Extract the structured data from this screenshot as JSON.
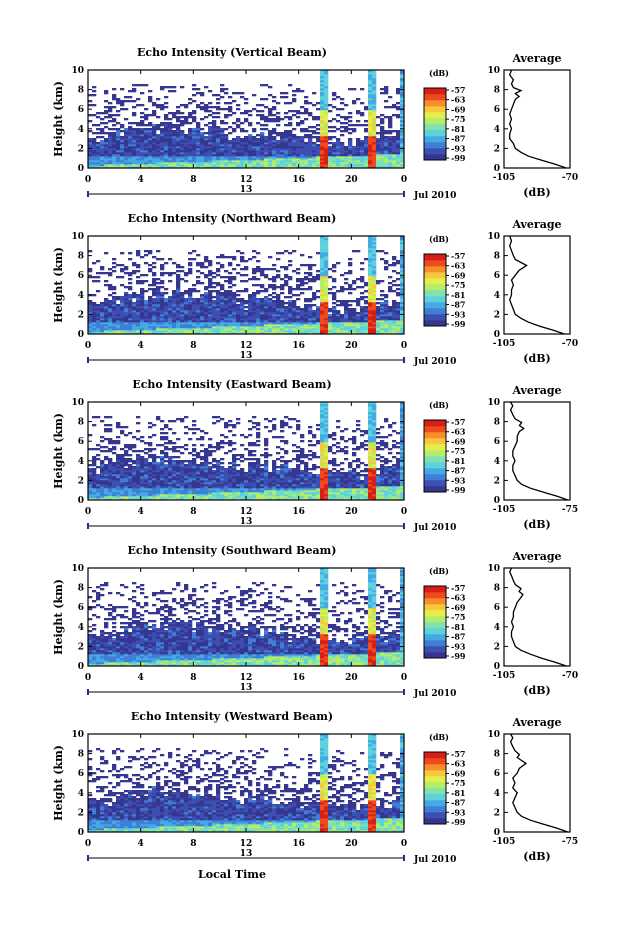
{
  "chart_data": [
    {
      "type": "heatmap",
      "title": "Echo Intensity (Vertical Beam)",
      "ylabel": "Height (km)",
      "x_ticks": [
        "0",
        "4",
        "8",
        "12",
        "16",
        "20",
        "0"
      ],
      "y_ticks": [
        "0",
        "2",
        "4",
        "6",
        "8",
        "10"
      ],
      "xlim": [
        0,
        24
      ],
      "ylim": [
        0,
        10
      ],
      "date_label": "Jul 2010",
      "colorbar": {
        "label": "(dB)",
        "ticks": [
          "-57",
          "-63",
          "-69",
          "-75",
          "-81",
          "-87",
          "-93",
          "-99"
        ]
      },
      "profile": {
        "title": "Average",
        "xlabel": "(dB)",
        "x_ticks": [
          "-105",
          "-70"
        ],
        "y_ticks": [
          "0",
          "2",
          "4",
          "6",
          "8",
          "10"
        ],
        "points": [
          [
            -72,
            0
          ],
          [
            -78,
            0.4
          ],
          [
            -85,
            0.8
          ],
          [
            -92,
            1.2
          ],
          [
            -96,
            1.6
          ],
          [
            -99,
            2.0
          ],
          [
            -100,
            2.5
          ],
          [
            -102,
            3.0
          ],
          [
            -102,
            3.5
          ],
          [
            -101,
            4.0
          ],
          [
            -102,
            4.5
          ],
          [
            -101,
            5.0
          ],
          [
            -102,
            5.5
          ],
          [
            -101,
            6.0
          ],
          [
            -100,
            6.5
          ],
          [
            -99,
            7.0
          ],
          [
            -97,
            7.3
          ],
          [
            -99,
            7.6
          ],
          [
            -96,
            7.9
          ],
          [
            -100,
            8.2
          ],
          [
            -101,
            8.6
          ],
          [
            -100,
            9.0
          ],
          [
            -102,
            9.5
          ],
          [
            -101,
            10
          ]
        ]
      }
    },
    {
      "type": "heatmap",
      "title": "Echo Intensity (Northward Beam)",
      "ylabel": "Height (km)",
      "x_ticks": [
        "0",
        "4",
        "8",
        "12",
        "16",
        "20",
        "0"
      ],
      "y_ticks": [
        "0",
        "2",
        "4",
        "6",
        "8",
        "10"
      ],
      "xlim": [
        0,
        24
      ],
      "ylim": [
        0,
        10
      ],
      "date_label": "Jul 2010",
      "colorbar": {
        "label": "(dB)",
        "ticks": [
          "-57",
          "-63",
          "-69",
          "-75",
          "-81",
          "-87",
          "-93",
          "-99"
        ]
      },
      "profile": {
        "title": "Average",
        "xlabel": "(dB)",
        "x_ticks": [
          "-105",
          "-70"
        ],
        "y_ticks": [
          "0",
          "2",
          "4",
          "6",
          "8",
          "10"
        ],
        "points": [
          [
            -73,
            0
          ],
          [
            -79,
            0.4
          ],
          [
            -86,
            0.8
          ],
          [
            -92,
            1.2
          ],
          [
            -96,
            1.6
          ],
          [
            -99,
            2.0
          ],
          [
            -100,
            2.5
          ],
          [
            -101,
            3.0
          ],
          [
            -102,
            3.5
          ],
          [
            -101,
            4.0
          ],
          [
            -101,
            4.5
          ],
          [
            -100,
            5.0
          ],
          [
            -101,
            5.5
          ],
          [
            -99,
            6.0
          ],
          [
            -97,
            6.5
          ],
          [
            -93,
            7.0
          ],
          [
            -96,
            7.3
          ],
          [
            -99,
            7.6
          ],
          [
            -100,
            8.0
          ],
          [
            -101,
            8.5
          ],
          [
            -102,
            9.0
          ],
          [
            -101,
            9.5
          ],
          [
            -102,
            10
          ]
        ]
      }
    },
    {
      "type": "heatmap",
      "title": "Echo Intensity (Eastward Beam)",
      "ylabel": "Height (km)",
      "x_ticks": [
        "0",
        "4",
        "8",
        "12",
        "16",
        "20",
        "0"
      ],
      "y_ticks": [
        "0",
        "2",
        "4",
        "6",
        "8",
        "10"
      ],
      "xlim": [
        0,
        24
      ],
      "ylim": [
        0,
        10
      ],
      "date_label": "Jul 2010",
      "colorbar": {
        "label": "(dB)",
        "ticks": [
          "-57",
          "-63",
          "-69",
          "-75",
          "-81",
          "-87",
          "-93",
          "-99"
        ]
      },
      "profile": {
        "title": "Average",
        "xlabel": "(dB)",
        "x_ticks": [
          "-105",
          "-75"
        ],
        "y_ticks": [
          "0",
          "2",
          "4",
          "6",
          "8",
          "10"
        ],
        "points": [
          [
            -76,
            0
          ],
          [
            -81,
            0.4
          ],
          [
            -87,
            0.8
          ],
          [
            -93,
            1.2
          ],
          [
            -97,
            1.6
          ],
          [
            -99,
            2.0
          ],
          [
            -100,
            2.5
          ],
          [
            -101,
            3.0
          ],
          [
            -101,
            3.5
          ],
          [
            -100,
            4.0
          ],
          [
            -101,
            4.5
          ],
          [
            -101,
            5.0
          ],
          [
            -100,
            5.5
          ],
          [
            -99,
            6.0
          ],
          [
            -99,
            6.5
          ],
          [
            -98,
            7.0
          ],
          [
            -96,
            7.3
          ],
          [
            -98,
            7.6
          ],
          [
            -97,
            7.9
          ],
          [
            -100,
            8.3
          ],
          [
            -101,
            8.7
          ],
          [
            -102,
            9.2
          ],
          [
            -101,
            9.6
          ],
          [
            -102,
            10
          ]
        ]
      }
    },
    {
      "type": "heatmap",
      "title": "Echo Intensity (Southward Beam)",
      "ylabel": "Height (km)",
      "x_ticks": [
        "0",
        "4",
        "8",
        "12",
        "16",
        "20",
        "0"
      ],
      "y_ticks": [
        "0",
        "2",
        "4",
        "6",
        "8",
        "10"
      ],
      "xlim": [
        0,
        24
      ],
      "ylim": [
        0,
        10
      ],
      "date_label": "Jul 2010",
      "colorbar": {
        "label": "(dB)",
        "ticks": [
          "-57",
          "-63",
          "-69",
          "-75",
          "-81",
          "-87",
          "-93",
          "-99"
        ]
      },
      "profile": {
        "title": "Average",
        "xlabel": "(dB)",
        "x_ticks": [
          "-105",
          "-70"
        ],
        "y_ticks": [
          "0",
          "2",
          "4",
          "6",
          "8",
          "10"
        ],
        "points": [
          [
            -72,
            0
          ],
          [
            -78,
            0.4
          ],
          [
            -85,
            0.8
          ],
          [
            -91,
            1.2
          ],
          [
            -96,
            1.6
          ],
          [
            -99,
            2.0
          ],
          [
            -100,
            2.5
          ],
          [
            -101,
            3.0
          ],
          [
            -101,
            3.5
          ],
          [
            -100,
            4.0
          ],
          [
            -101,
            4.5
          ],
          [
            -100,
            5.0
          ],
          [
            -100,
            5.5
          ],
          [
            -99,
            6.0
          ],
          [
            -98,
            6.5
          ],
          [
            -96,
            7.0
          ],
          [
            -95,
            7.3
          ],
          [
            -97,
            7.6
          ],
          [
            -96,
            7.9
          ],
          [
            -99,
            8.3
          ],
          [
            -100,
            8.7
          ],
          [
            -101,
            9.2
          ],
          [
            -102,
            9.6
          ],
          [
            -101,
            10
          ]
        ]
      }
    },
    {
      "type": "heatmap",
      "title": "Echo Intensity (Westward Beam)",
      "ylabel": "Height (km)",
      "xlabel": "Local Time",
      "x_ticks": [
        "0",
        "4",
        "8",
        "12",
        "16",
        "20",
        "0"
      ],
      "y_ticks": [
        "0",
        "2",
        "4",
        "6",
        "8",
        "10"
      ],
      "xlim": [
        0,
        24
      ],
      "ylim": [
        0,
        10
      ],
      "date_label": "Jul 2010",
      "colorbar": {
        "label": "(dB)",
        "ticks": [
          "-57",
          "-63",
          "-69",
          "-75",
          "-81",
          "-87",
          "-93",
          "-99"
        ]
      },
      "profile": {
        "title": "Average",
        "xlabel": "(dB)",
        "x_ticks": [
          "-105",
          "-75"
        ],
        "y_ticks": [
          "0",
          "2",
          "4",
          "6",
          "8",
          "10"
        ],
        "points": [
          [
            -76,
            0
          ],
          [
            -81,
            0.4
          ],
          [
            -87,
            0.8
          ],
          [
            -93,
            1.2
          ],
          [
            -97,
            1.6
          ],
          [
            -99,
            2.0
          ],
          [
            -100,
            2.5
          ],
          [
            -101,
            3.0
          ],
          [
            -100,
            3.5
          ],
          [
            -99,
            4.0
          ],
          [
            -101,
            4.5
          ],
          [
            -100,
            5.0
          ],
          [
            -101,
            5.5
          ],
          [
            -99,
            6.0
          ],
          [
            -98,
            6.5
          ],
          [
            -95,
            7.0
          ],
          [
            -97,
            7.3
          ],
          [
            -99,
            7.6
          ],
          [
            -98,
            7.9
          ],
          [
            -100,
            8.3
          ],
          [
            -101,
            8.7
          ],
          [
            -102,
            9.2
          ],
          [
            -101,
            9.6
          ],
          [
            -102,
            10
          ]
        ]
      }
    }
  ],
  "date_center_label": "13",
  "palette": [
    "#35368f",
    "#3d4fb2",
    "#3f7fd6",
    "#45a9e4",
    "#5dd1dc",
    "#7fe2b0",
    "#b4ec6c",
    "#e4ef4b",
    "#f7c83e",
    "#f78e2a",
    "#ee4a1f",
    "#d61f16"
  ]
}
